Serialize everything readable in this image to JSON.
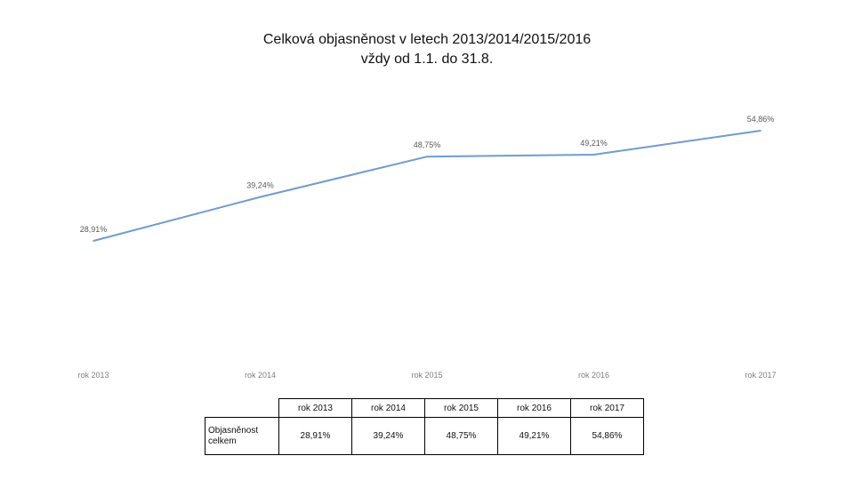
{
  "chart_data": {
    "type": "line",
    "title_lines": [
      "Celková objasněnost v letech 2013/2014/2015/2016",
      "vždy od 1.1. do 31.8."
    ],
    "categories": [
      "rok 2013",
      "rok 2014",
      "rok 2015",
      "rok 2016",
      "rok 2017"
    ],
    "values": [
      28.91,
      39.24,
      48.75,
      49.21,
      54.86
    ],
    "data_labels": [
      "28,91%",
      "39,24%",
      "48,75%",
      "49,21%",
      "54,86%"
    ],
    "series": [
      {
        "values": [
          28.91,
          39.24,
          48.75,
          49.21,
          54.86
        ]
      }
    ],
    "y_unit": "%",
    "grid": false,
    "legend": "none",
    "line_color": "#6f9ccf",
    "label_color": "#595959"
  },
  "table": {
    "headers": [
      "rok 2013",
      "rok 2014",
      "rok 2015",
      "rok 2016",
      "rok 2017"
    ],
    "row_label": "Objasněnost celkem",
    "values": [
      "28,91%",
      "39,24%",
      "48,75%",
      "49,21%",
      "54,86%"
    ]
  }
}
